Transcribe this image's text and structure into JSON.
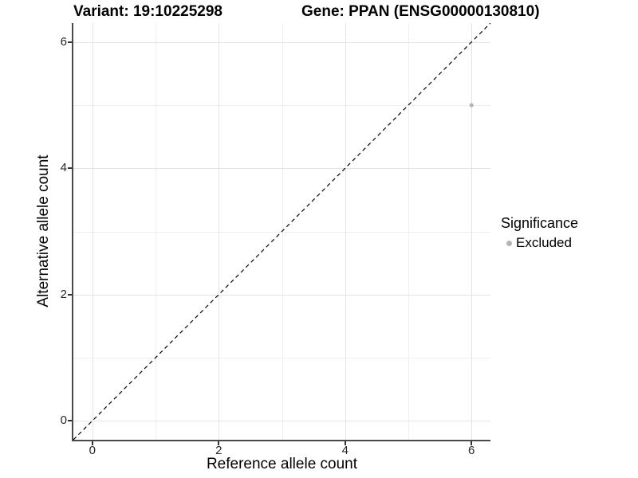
{
  "chart_data": {
    "type": "scatter",
    "titles": {
      "left": "Variant: 19:10225298",
      "right": "Gene: PPAN (ENSG00000130810)"
    },
    "xlabel": "Reference allele count",
    "ylabel": "Alternative allele count",
    "xlim": [
      -0.3,
      6.3
    ],
    "ylim": [
      -0.3,
      6.3
    ],
    "x_ticks": [
      0,
      2,
      4,
      6
    ],
    "y_ticks": [
      0,
      2,
      4,
      6
    ],
    "x_minor_ticks": [
      1,
      3,
      5
    ],
    "y_minor_ticks": [
      1,
      3,
      5
    ],
    "grid": true,
    "legend_position": "right",
    "reference_line": {
      "kind": "identity",
      "linetype": "dashed",
      "color": "#000000"
    },
    "series": [
      {
        "name": "Excluded",
        "color": "#b5b5b5",
        "points": [
          {
            "x": 6,
            "y": 5
          }
        ]
      }
    ],
    "legend": {
      "title": "Significance",
      "items": [
        {
          "label": "Excluded",
          "color": "#b5b5b5",
          "marker": "circle"
        }
      ]
    },
    "style": {
      "background": "#ffffff",
      "grid_major_color": "#e4e4e4",
      "grid_minor_color": "#efefef",
      "axis_color": "#4a4a4a",
      "tick_color": "#333333",
      "point_radius": 2.6
    }
  }
}
